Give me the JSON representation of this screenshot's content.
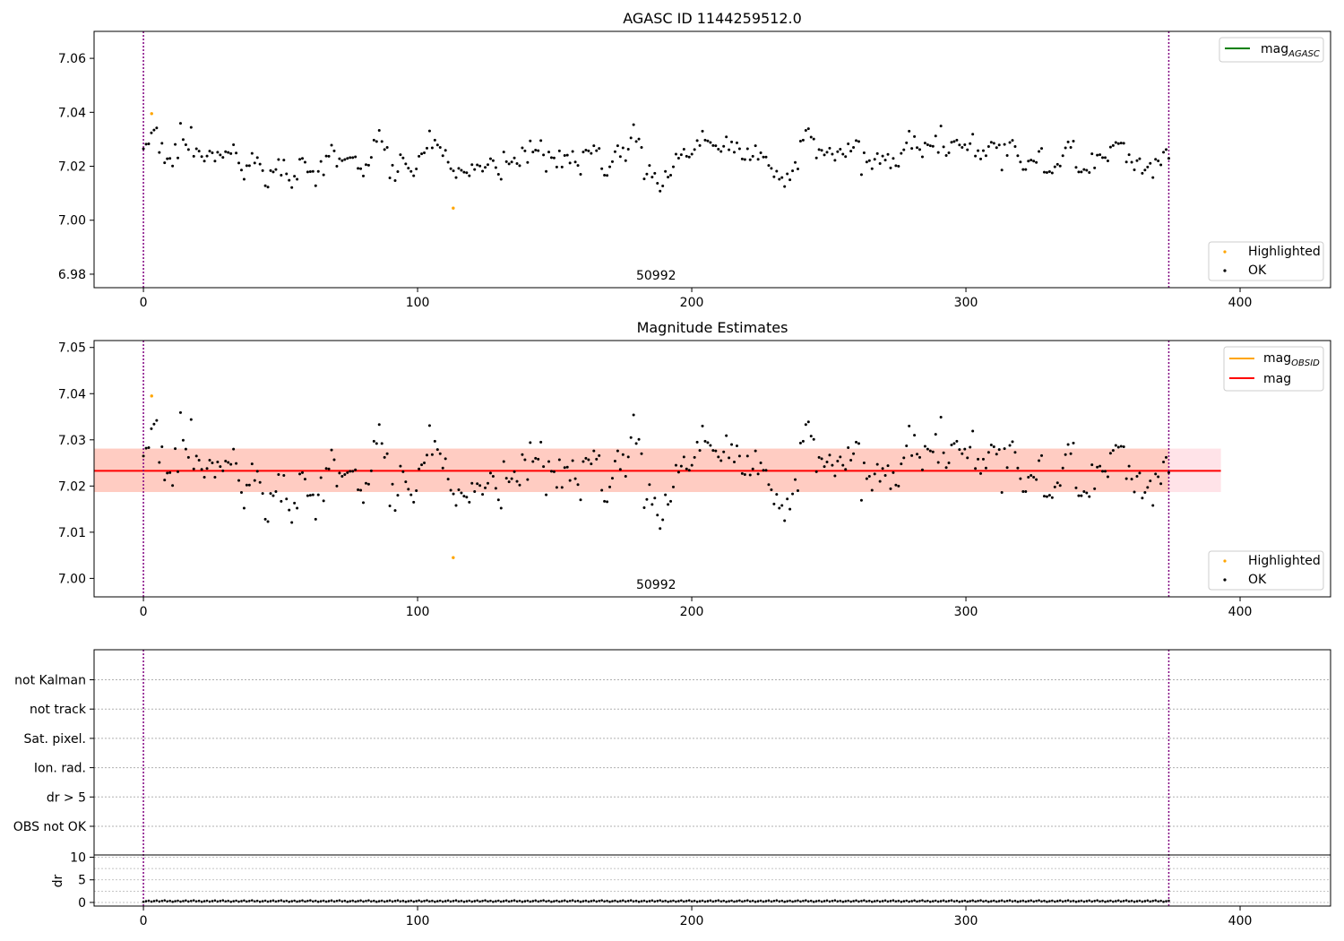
{
  "chart_data": [
    {
      "type": "scatter",
      "title": "AGASC ID 1144259512.0",
      "xlim": [
        -18,
        433
      ],
      "ylim": [
        6.975,
        7.07
      ],
      "xticks": [
        0,
        100,
        200,
        300,
        400
      ],
      "yticks": [
        6.98,
        7.0,
        7.02,
        7.04,
        7.06
      ],
      "vlines": [
        0,
        374
      ],
      "annotation": {
        "text": "50992",
        "x": 187
      },
      "legend_top": [
        {
          "label": "mag",
          "sub": "AGASC",
          "color": "#008000"
        }
      ],
      "legend_bottom": [
        {
          "label": "Highlighted",
          "color": "#ffa500"
        },
        {
          "label": "OK",
          "color": "#000000"
        }
      ],
      "series": [
        {
          "name": "Highlighted",
          "color": "#ffa500",
          "points": [
            [
              3,
              7.0395
            ],
            [
              113,
              7.0045
            ]
          ]
        }
      ]
    },
    {
      "type": "scatter",
      "title": "Magnitude Estimates",
      "xlim": [
        -18,
        433
      ],
      "ylim": [
        6.996,
        7.0515
      ],
      "xticks": [
        0,
        100,
        200,
        300,
        400
      ],
      "yticks": [
        7.0,
        7.01,
        7.02,
        7.03,
        7.04,
        7.05
      ],
      "vlines": [
        0,
        374
      ],
      "annotation": {
        "text": "50992",
        "x": 187
      },
      "mag_line": {
        "value": 7.0233,
        "x_range": [
          -18,
          393
        ],
        "color": "#ff0000"
      },
      "bands": [
        {
          "y_range": [
            7.0187,
            7.0281
          ],
          "x_range": [
            -18,
            393
          ],
          "color": "#ffc0cb"
        },
        {
          "y_range": [
            7.0187,
            7.0281
          ],
          "x_range": [
            -18,
            374
          ],
          "color": "#ffa07a"
        }
      ],
      "legend_top": [
        {
          "label": "mag",
          "sub": "OBSID",
          "color": "#ffa500"
        },
        {
          "label": "mag",
          "sub": "",
          "color": "#ff0000"
        }
      ],
      "legend_bottom": [
        {
          "label": "Highlighted",
          "color": "#ffa500"
        },
        {
          "label": "OK",
          "color": "#000000"
        }
      ],
      "series": [
        {
          "name": "Highlighted",
          "color": "#ffa500",
          "points": [
            [
              3,
              7.0395
            ],
            [
              113,
              7.0045
            ]
          ]
        }
      ]
    },
    {
      "type": "scatter",
      "title": "",
      "xlim": [
        -18,
        433
      ],
      "flags": [
        "not Kalman",
        "not track",
        "Sat. pixel.",
        "Ion. rad.",
        "dr > 5",
        "OBS not OK"
      ],
      "dr_yticks": [
        0,
        5,
        10
      ],
      "dr_ylabel": "dr",
      "dr_ylim": [
        -0.8,
        10.5
      ],
      "xticks": [
        0,
        100,
        200,
        300,
        400
      ],
      "vlines": [
        0,
        374
      ]
    }
  ],
  "ok_series_magnitudes": [
    7.0265,
    7.0282,
    7.0283,
    7.0324,
    7.0334,
    7.0342,
    7.0251,
    7.0285,
    7.0213,
    7.0228,
    7.0229,
    7.0201,
    7.0281,
    7.0231,
    7.0359,
    7.0299,
    7.028,
    7.0262,
    7.0344,
    7.0237,
    7.0265,
    7.0256,
    7.0236,
    7.0219,
    7.0238,
    7.0256,
    7.025,
    7.0219,
    7.0252,
    7.0242,
    7.0233,
    7.0254,
    7.0251,
    7.0247,
    7.028,
    7.0249,
    7.0212,
    7.0186,
    7.0152,
    7.0202,
    7.0202,
    7.0248,
    7.0212,
    7.0232,
    7.0208,
    7.0184,
    7.0128,
    7.0123,
    7.0184,
    7.0179,
    7.0188,
    7.0225,
    7.0167,
    7.0223,
    7.0172,
    7.0148,
    7.0121,
    7.0163,
    7.0152,
    7.0226,
    7.0229,
    7.0215,
    7.0179,
    7.018,
    7.0181,
    7.0128,
    7.0181,
    7.0218,
    7.0168,
    7.0238,
    7.0237,
    7.0278,
    7.0257,
    7.02,
    7.0228,
    7.0221,
    7.0225,
    7.0229,
    7.0232,
    7.0232,
    7.0235,
    7.0192,
    7.0191,
    7.0164,
    7.0206,
    7.0204,
    7.0233,
    7.0297,
    7.0292,
    7.0333,
    7.0292,
    7.0262,
    7.027,
    7.0157,
    7.0204,
    7.0147,
    7.018,
    7.0243,
    7.0231,
    7.0209,
    7.0193,
    7.0181,
    7.0165,
    7.019,
    7.0237,
    7.0246,
    7.025,
    7.0267,
    7.0331,
    7.0268,
    7.0297,
    7.0279,
    7.027,
    7.0239,
    7.0259,
    7.0215,
    7.0191,
    7.0183,
    7.0158,
    7.0192,
    7.0185,
    7.0178,
    7.0176,
    7.0165,
    7.0206,
    7.0188,
    7.0205,
    7.0201,
    7.0182,
    7.0196,
    7.0206,
    7.0228,
    7.0221,
    7.0195,
    7.017,
    7.0152,
    7.0253,
    7.0217,
    7.0209,
    7.0216,
    7.0231,
    7.021,
    7.0202,
    7.0268,
    7.0257,
    7.0214,
    7.0294,
    7.0253,
    7.026,
    7.0258,
    7.0295,
    7.0242,
    7.0181,
    7.0253,
    7.0232,
    7.0231,
    7.0197,
    7.0257,
    7.0197,
    7.024,
    7.0241,
    7.0212,
    7.0255,
    7.0216,
    7.0203,
    7.017,
    7.0253,
    7.026,
    7.0257,
    7.0248,
    7.0276,
    7.0258,
    7.0266,
    7.0191,
    7.0167,
    7.0166,
    7.0198,
    7.0217,
    7.0254,
    7.0276,
    7.0236,
    7.0268,
    7.0221,
    7.0263,
    7.0305,
    7.0354,
    7.0292,
    7.0301,
    7.027,
    7.0153,
    7.0171,
    7.0203,
    7.016,
    7.0174,
    7.0137,
    7.0108,
    7.0127,
    7.0181,
    7.016,
    7.0167,
    7.0198,
    7.0245,
    7.023,
    7.0243,
    7.0263,
    7.0237,
    7.0234,
    7.0245,
    7.0262,
    7.0295,
    7.0277,
    7.033,
    7.0297,
    7.0294,
    7.0288,
    7.0277,
    7.0276,
    7.0263,
    7.0255,
    7.0274,
    7.0309,
    7.0261,
    7.029,
    7.0252,
    7.0287,
    7.0265,
    7.0227,
    7.0225,
    7.0265,
    7.0224,
    7.0237,
    7.0276,
    7.0226,
    7.025,
    7.0234,
    7.0234,
    7.0203,
    7.0192,
    7.0161,
    7.0182,
    7.0152,
    7.0158,
    7.0125,
    7.0172,
    7.015,
    7.0183,
    7.0214,
    7.019,
    7.0293,
    7.0297,
    7.0333,
    7.0339,
    7.0308,
    7.0301,
    7.0231,
    7.0262,
    7.0259,
    7.0242,
    7.0252,
    7.0267,
    7.0245,
    7.0222,
    7.0254,
    7.0263,
    7.0245,
    7.0236,
    7.0283,
    7.0256,
    7.027,
    7.0295,
    7.0292,
    7.0169,
    7.025,
    7.0216,
    7.0221,
    7.0191,
    7.0226,
    7.0247,
    7.021,
    7.0238,
    7.0223,
    7.0244,
    7.0194,
    7.0229,
    7.0202,
    7.02,
    7.0248,
    7.0261,
    7.0287,
    7.033,
    7.0266,
    7.031,
    7.0269,
    7.0262,
    7.0235,
    7.0286,
    7.028,
    7.0276,
    7.0274,
    7.0312,
    7.0251,
    7.0349,
    7.0272,
    7.024,
    7.025,
    7.0289,
    7.0292,
    7.0297,
    7.0279,
    7.027,
    7.028,
    7.0261,
    7.0284,
    7.0319,
    7.0238,
    7.0258,
    7.0227,
    7.0258,
    7.0239,
    7.0273,
    7.0289,
    7.0285,
    7.0269,
    7.0279,
    7.0186,
    7.0281,
    7.024,
    7.0288,
    7.0296,
    7.0273,
    7.0239,
    7.0216,
    7.0188,
    7.0188,
    7.0219,
    7.0223,
    7.0219,
    7.0214,
    7.0255,
    7.0266,
    7.0178,
    7.0177,
    7.018,
    7.0175,
    7.0198,
    7.0207,
    7.0201,
    7.0239,
    7.0268,
    7.029,
    7.027,
    7.0293,
    7.0196,
    7.0179,
    7.0179,
    7.0188,
    7.0185,
    7.0177,
    7.0246,
    7.0194,
    7.0241,
    7.0243,
    7.0232,
    7.0232,
    7.022,
    7.0271,
    7.0277,
    7.0288,
    7.0284,
    7.0286,
    7.0285,
    7.0216,
    7.0243,
    7.0215,
    7.0187,
    7.0221,
    7.0228,
    7.0174,
    7.0186,
    7.0197,
    7.0211,
    7.0158,
    7.0226,
    7.022,
    7.0205,
    7.0252,
    7.0262,
    7.0229
  ],
  "ok_series_dr": [
    0.15,
    0.45
  ]
}
